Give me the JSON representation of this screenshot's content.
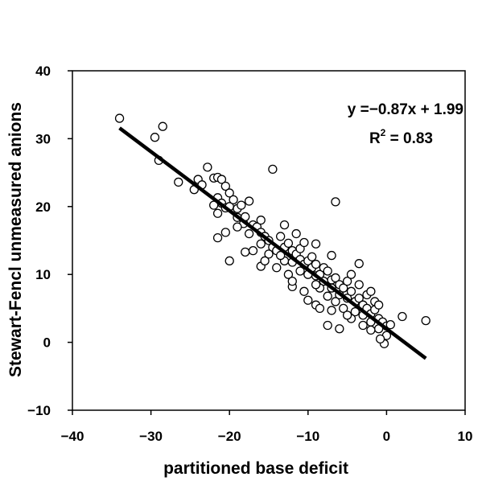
{
  "chart_data": {
    "type": "scatter",
    "title": "",
    "xlabel": "partitioned base deficit",
    "ylabel": "Stewart-Fencl unmeasured anions",
    "xlim": [
      -40,
      10
    ],
    "ylim": [
      -10,
      40
    ],
    "xticks": [
      -40,
      -30,
      -20,
      -10,
      0,
      10
    ],
    "yticks": [
      -10,
      0,
      10,
      20,
      30,
      40
    ],
    "xtick_labels": [
      "−40",
      "−30",
      "−20",
      "−10",
      "0",
      "10"
    ],
    "ytick_labels": [
      "−10",
      "0",
      "10",
      "20",
      "30",
      "40"
    ],
    "grid": false,
    "legend": "none",
    "marker": "open-circle",
    "annotations": {
      "equation": "y =−0.87x + 1.99",
      "r2_prefix": "R",
      "r2_sup": "2",
      "r2_suffix": " = 0.83"
    },
    "fit_line": {
      "slope": -0.87,
      "intercept": 1.99,
      "x_range": [
        -34,
        5
      ]
    },
    "points": [
      [
        -34,
        33
      ],
      [
        -29.5,
        30.2
      ],
      [
        -28.5,
        31.8
      ],
      [
        -29,
        26.8
      ],
      [
        -26.5,
        23.6
      ],
      [
        -24.5,
        22.5
      ],
      [
        -24,
        24
      ],
      [
        -23.5,
        23.2
      ],
      [
        -22.8,
        25.8
      ],
      [
        -22,
        24.2
      ],
      [
        -21.5,
        24.3
      ],
      [
        -21,
        24
      ],
      [
        -20.5,
        23
      ],
      [
        -21.5,
        21.3
      ],
      [
        -22,
        20.2
      ],
      [
        -21,
        20.5
      ],
      [
        -20.5,
        19.8
      ],
      [
        -21.5,
        19
      ],
      [
        -20,
        22
      ],
      [
        -20,
        20
      ],
      [
        -19.5,
        21
      ],
      [
        -19,
        19.7
      ],
      [
        -18.5,
        20.2
      ],
      [
        -19,
        18.4
      ],
      [
        -18.2,
        17.5
      ],
      [
        -19,
        17
      ],
      [
        -18,
        18.5
      ],
      [
        -17,
        17.3
      ],
      [
        -17.5,
        16
      ],
      [
        -16.5,
        17
      ],
      [
        -16,
        16.2
      ],
      [
        -15.5,
        15.6
      ],
      [
        -16,
        14.5
      ],
      [
        -15,
        15
      ],
      [
        -14.5,
        14
      ],
      [
        -15,
        13
      ],
      [
        -14,
        13.5
      ],
      [
        -13.5,
        15.6
      ],
      [
        -13,
        14
      ],
      [
        -13,
        12
      ],
      [
        -12.5,
        14.6
      ],
      [
        -12,
        13.5
      ],
      [
        -12,
        11.8
      ],
      [
        -11.5,
        13
      ],
      [
        -11,
        12.2
      ],
      [
        -11,
        10.5
      ],
      [
        -10.5,
        11.5
      ],
      [
        -10,
        12
      ],
      [
        -10,
        10
      ],
      [
        -9.5,
        11
      ],
      [
        -9,
        11.5
      ],
      [
        -9,
        9.8
      ],
      [
        -8.5,
        10
      ],
      [
        -8,
        11
      ],
      [
        -8,
        9
      ],
      [
        -7.5,
        10.5
      ],
      [
        -7,
        9.2
      ],
      [
        -7,
        8
      ],
      [
        -6.5,
        9.5
      ],
      [
        -6,
        8.5
      ],
      [
        -6,
        7
      ],
      [
        -5.5,
        8
      ],
      [
        -5,
        9
      ],
      [
        -5,
        6.5
      ],
      [
        -4.5,
        7.5
      ],
      [
        -4,
        6
      ],
      [
        -4,
        4.5
      ],
      [
        -3.5,
        6.5
      ],
      [
        -3,
        5.5
      ],
      [
        -3,
        4
      ],
      [
        -2.5,
        5
      ],
      [
        -2,
        4.2
      ],
      [
        -2,
        3
      ],
      [
        -1.5,
        4.8
      ],
      [
        -1,
        3.5
      ],
      [
        -1,
        2
      ],
      [
        -0.5,
        3
      ],
      [
        0,
        2.4
      ],
      [
        0,
        1
      ],
      [
        0.5,
        2.6
      ],
      [
        -0.3,
        -0.2
      ],
      [
        -0.8,
        0.5
      ],
      [
        2,
        3.8
      ],
      [
        5,
        3.2
      ],
      [
        -14.5,
        25.5
      ],
      [
        -6.5,
        20.7
      ],
      [
        -21.5,
        15.4
      ],
      [
        -20.5,
        16.2
      ],
      [
        -20,
        12
      ],
      [
        -18,
        13.3
      ],
      [
        -16,
        11.2
      ],
      [
        -12,
        8.2
      ],
      [
        -10,
        6.2
      ],
      [
        -9,
        5.5
      ],
      [
        -8.5,
        5
      ],
      [
        -7,
        4.7
      ],
      [
        -6,
        2
      ],
      [
        -7.5,
        2.5
      ],
      [
        -3.5,
        11.6
      ],
      [
        -2.5,
        7
      ],
      [
        -11,
        13.8
      ],
      [
        -9.5,
        12.6
      ],
      [
        -13.5,
        12.8
      ],
      [
        -12.5,
        10
      ],
      [
        -8.5,
        8
      ],
      [
        -10.5,
        7.5
      ],
      [
        -7.5,
        6.8
      ],
      [
        -4.5,
        10
      ],
      [
        -3.5,
        8.5
      ],
      [
        -2,
        7.5
      ],
      [
        -1.5,
        6
      ],
      [
        -1,
        5.5
      ],
      [
        -5.5,
        5
      ],
      [
        -4.5,
        3.5
      ],
      [
        -3,
        2.5
      ],
      [
        -2,
        1.8
      ],
      [
        -15.5,
        12
      ],
      [
        -17,
        13.5
      ],
      [
        -14,
        11
      ],
      [
        -12,
        9
      ],
      [
        -9,
        8.5
      ],
      [
        -6.5,
        6
      ],
      [
        -5,
        4
      ],
      [
        -13,
        17.3
      ],
      [
        -11.5,
        16
      ],
      [
        -10.5,
        14.7
      ],
      [
        -9,
        14.5
      ],
      [
        -7,
        12.8
      ],
      [
        -17.5,
        20.8
      ],
      [
        -16,
        18
      ]
    ]
  }
}
